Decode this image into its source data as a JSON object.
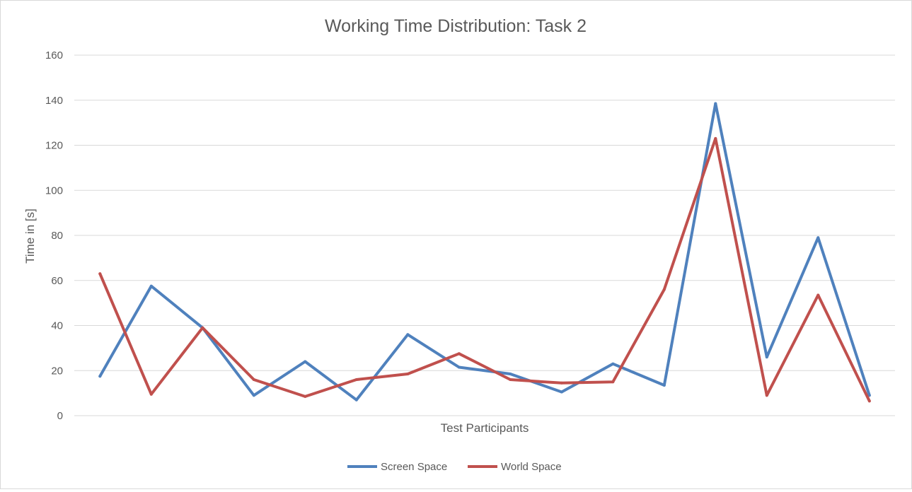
{
  "chart_data": {
    "type": "line",
    "title": "Working Time Distribution: Task 2",
    "xlabel": "Test Participants",
    "ylabel": "Time in [s]",
    "ylim": [
      0,
      160
    ],
    "yticks": [
      0,
      20,
      40,
      60,
      80,
      100,
      120,
      140,
      160
    ],
    "grid": true,
    "legend_position": "bottom",
    "series": [
      {
        "name": "Screen Space",
        "color": "#4F81BD",
        "values": [
          17.5,
          57.5,
          39,
          9,
          24,
          7,
          36,
          21.5,
          18.5,
          10.5,
          23,
          13.5,
          138.5,
          26,
          79,
          9
        ]
      },
      {
        "name": "World Space",
        "color": "#C0504D",
        "values": [
          63,
          9.5,
          39,
          16,
          8.5,
          16,
          18.5,
          27.5,
          16,
          14.5,
          15,
          56,
          123,
          9,
          53.5,
          6.5
        ]
      }
    ]
  }
}
